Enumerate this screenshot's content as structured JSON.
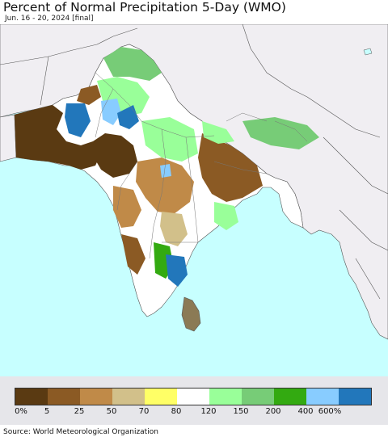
{
  "header": {
    "title": "Percent of Normal Precipitation 5-Day (WMO)",
    "subtitle": "Jun. 16 - 20, 2024 [final]"
  },
  "legend": {
    "colors": [
      "#5a3a12",
      "#8b5a24",
      "#c08a48",
      "#d2c08a",
      "#ffff66",
      "#ffffff",
      "#99ff99",
      "#77cc77",
      "#33aa11",
      "#88ccff",
      "#2277bb"
    ],
    "labels": [
      "0%",
      "5",
      "25",
      "50",
      "70",
      "80",
      "120",
      "150",
      "200",
      "400",
      "600%"
    ]
  },
  "colors": {
    "ocean": "#c7ffff",
    "outside_land": "#f0eef2",
    "boundary": "#555555"
  },
  "footer": {
    "source": "Source: World Meteorological Organization"
  }
}
